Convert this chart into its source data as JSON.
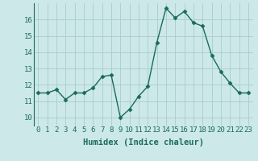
{
  "x": [
    0,
    1,
    2,
    3,
    4,
    5,
    6,
    7,
    8,
    9,
    10,
    11,
    12,
    13,
    14,
    15,
    16,
    17,
    18,
    19,
    20,
    21,
    22,
    23
  ],
  "y": [
    11.5,
    11.5,
    11.7,
    11.1,
    11.5,
    11.5,
    11.8,
    12.5,
    12.6,
    10.0,
    10.5,
    11.3,
    11.9,
    14.6,
    16.7,
    16.1,
    16.5,
    15.8,
    15.6,
    13.8,
    12.8,
    12.1,
    11.5,
    11.5
  ],
  "xlabel": "Humidex (Indice chaleur)",
  "line_color": "#1a6b5a",
  "marker_color": "#1a6b5a",
  "bg_color": "#cce8e8",
  "grid_color": "#aacccc",
  "xlim": [
    -0.5,
    23.5
  ],
  "ylim": [
    9.5,
    17.0
  ],
  "yticks": [
    10,
    11,
    12,
    13,
    14,
    15,
    16
  ],
  "xticks": [
    0,
    1,
    2,
    3,
    4,
    5,
    6,
    7,
    8,
    9,
    10,
    11,
    12,
    13,
    14,
    15,
    16,
    17,
    18,
    19,
    20,
    21,
    22,
    23
  ],
  "xtick_labels": [
    "0",
    "1",
    "2",
    "3",
    "4",
    "5",
    "6",
    "7",
    "8",
    "9",
    "10",
    "11",
    "12",
    "13",
    "14",
    "15",
    "16",
    "17",
    "18",
    "19",
    "20",
    "21",
    "22",
    "23"
  ],
  "tick_fontsize": 6.5,
  "xlabel_fontsize": 7.5,
  "marker_size": 2.5,
  "linewidth": 1.0
}
